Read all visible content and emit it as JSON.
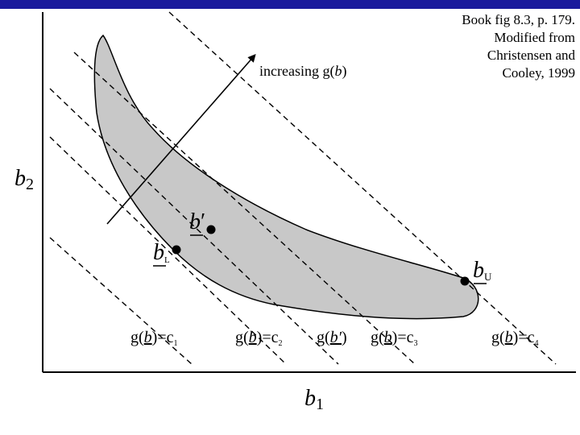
{
  "colors": {
    "top_bar": "#1a1a9c",
    "region_fill": "#c8c8c8",
    "ink": "#000000"
  },
  "caption": {
    "line1": "Book fig 8.3, p. 179.",
    "line2": "Modified from",
    "line3": "Christensen and",
    "line4": "Cooley, 1999"
  },
  "axes": {
    "x_label_main": "b",
    "x_label_sub": "1",
    "y_label_main": "b",
    "y_label_sub": "2"
  },
  "arrow_label": {
    "prefix": "increasing g(",
    "var": "b",
    "suffix": ")"
  },
  "points": {
    "b_prime": {
      "main": "b",
      "mark": "′"
    },
    "b_lower": {
      "main": "b",
      "sub": "L"
    },
    "b_upper": {
      "main": "b",
      "sub": "U"
    }
  },
  "contour_labels": {
    "c1": {
      "prefix": "g(",
      "var": "b",
      "mid": ")=c",
      "sub": "1"
    },
    "c2": {
      "prefix": "g(",
      "var": "b",
      "mid": ")=c",
      "sub": "2"
    },
    "bprime": {
      "prefix": "g(",
      "var": "b′",
      "mid": ")",
      "sub": ""
    },
    "c3": {
      "prefix": "g(",
      "var": "b",
      "mid": ")=c",
      "sub": "3"
    },
    "c4": {
      "prefix": "g(",
      "var": "b",
      "mid": ")=c",
      "sub": "4"
    }
  }
}
